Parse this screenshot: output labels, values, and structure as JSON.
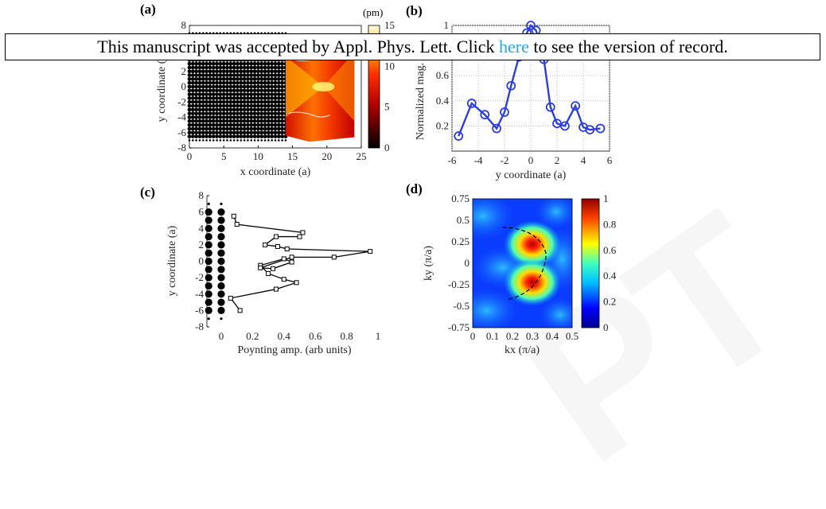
{
  "banner": {
    "text_before": "This manuscript was accepted by Appl. Phys. Lett. Click ",
    "link_text": "here",
    "text_after": " to see the version of record."
  },
  "watermark_text": "PT",
  "panels": {
    "a": {
      "letter": "(a)",
      "colorbar_units": "(pm)"
    },
    "b": {
      "letter": "(b)"
    },
    "c": {
      "letter": "(c)"
    },
    "d": {
      "letter": "(d)"
    }
  },
  "chart_data": [
    {
      "type": "heatmap",
      "panel": "a",
      "xlabel": "x coordinate (a)",
      "ylabel": "y coordinate (a)",
      "xlim": [
        0,
        25
      ],
      "ylim": [
        -8,
        8
      ],
      "xticks": [
        0,
        5,
        10,
        15,
        20,
        25
      ],
      "yticks": [
        -8,
        -6,
        -4,
        -2,
        0,
        2,
        4,
        6,
        8
      ],
      "hole_lattice_x": [
        0,
        14
      ],
      "hole_lattice_y": [
        -7,
        7
      ],
      "field_region_x": [
        14,
        24
      ],
      "colorbar": {
        "min": 0,
        "max": 15,
        "ticks": [
          0,
          5,
          10,
          15
        ],
        "units": "(pm)",
        "colormap": "hot"
      }
    },
    {
      "type": "line",
      "panel": "b",
      "xlabel": "y coordinate (a)",
      "ylabel": "Normalized mag. (a.u.)",
      "xlim": [
        -6,
        6
      ],
      "ylim": [
        0,
        1
      ],
      "xticks": [
        -6,
        -4,
        -2,
        0,
        2,
        4,
        6
      ],
      "yticks": [
        0.2,
        0.4,
        0.6,
        0.8,
        1
      ],
      "color": "#2e3fd6",
      "x": [
        -5.5,
        -4.5,
        -3.5,
        -2.6,
        -2.0,
        -1.5,
        -0.9,
        -0.3,
        0.0,
        0.4,
        1.0,
        1.5,
        2.0,
        2.6,
        3.4,
        4.0,
        4.5,
        5.3
      ],
      "y": [
        0.12,
        0.38,
        0.29,
        0.18,
        0.31,
        0.52,
        0.75,
        0.94,
        1.0,
        0.96,
        0.73,
        0.35,
        0.22,
        0.2,
        0.36,
        0.19,
        0.17,
        0.18
      ]
    },
    {
      "type": "line",
      "panel": "c",
      "xlabel": "Poynting amp. (arb units)",
      "ylabel": "y coordinate (a)",
      "xlim": [
        0,
        1
      ],
      "ylim": [
        -8,
        8
      ],
      "xticks": [
        0,
        0.2,
        0.4,
        0.6,
        0.8,
        1
      ],
      "yticks": [
        -8,
        -6,
        -4,
        -2,
        0,
        2,
        4,
        6,
        8
      ],
      "color": "#000000",
      "x": [
        0.12,
        0.06,
        0.35,
        0.48,
        0.4,
        0.3,
        0.25,
        0.4,
        0.45,
        0.33,
        0.25,
        0.45,
        0.72,
        0.95,
        0.42,
        0.36,
        0.28,
        0.35,
        0.5,
        0.52,
        0.1,
        0.08
      ],
      "y": [
        -6.0,
        -4.5,
        -3.4,
        -2.6,
        -2.2,
        -1.5,
        -0.5,
        0.3,
        -0.1,
        -0.9,
        -0.8,
        0.5,
        0.5,
        1.2,
        1.5,
        1.8,
        2.0,
        3.0,
        3.0,
        3.5,
        4.5,
        5.5
      ],
      "hole_column_x_offsets": [
        -0.08,
        0.0
      ],
      "hole_rows_y": [
        -7,
        -6,
        -5,
        -4,
        -3,
        -2,
        -1,
        0,
        1,
        2,
        3,
        4,
        5,
        6,
        7
      ]
    },
    {
      "type": "heatmap",
      "panel": "d",
      "xlabel": "kx (π/a)",
      "ylabel": "ky (π/a)",
      "xlim": [
        0,
        0.5
      ],
      "ylim": [
        -0.75,
        0.75
      ],
      "xtick_labels": [
        "0",
        "0.1",
        "0.2",
        "0.3",
        "0.4",
        "0.5"
      ],
      "ytick_labels": [
        "0.75",
        "0.5",
        "0.25",
        "0",
        "-0.25",
        "-0.5",
        "-0.75"
      ],
      "hotspots": [
        {
          "kx": 0.3,
          "ky": 0.22
        },
        {
          "kx": 0.3,
          "ky": -0.22
        }
      ],
      "colorbar": {
        "min": 0,
        "max": 1,
        "ticks": [
          0,
          0.2,
          0.4,
          0.6,
          0.8,
          1
        ],
        "colormap": "jet"
      }
    }
  ]
}
